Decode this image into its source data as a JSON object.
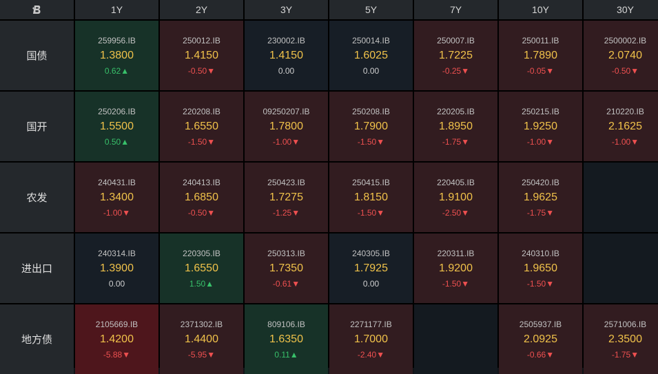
{
  "columns": [
    "1Y",
    "2Y",
    "3Y",
    "5Y",
    "7Y",
    "10Y",
    "30Y"
  ],
  "rows": [
    {
      "label": "国债",
      "cells": [
        {
          "code": "259956.IB",
          "yield": "1.3800",
          "change": "0.62▲",
          "dir": "up",
          "tone": "green"
        },
        {
          "code": "250012.IB",
          "yield": "1.4150",
          "change": "-0.50▼",
          "dir": "down",
          "tone": "red"
        },
        {
          "code": "230002.IB",
          "yield": "1.4150",
          "change": "0.00",
          "dir": "flat",
          "tone": "neutral"
        },
        {
          "code": "250014.IB",
          "yield": "1.6025",
          "change": "0.00",
          "dir": "flat",
          "tone": "neutral"
        },
        {
          "code": "250007.IB",
          "yield": "1.7225",
          "change": "-0.25▼",
          "dir": "down",
          "tone": "red"
        },
        {
          "code": "250011.IB",
          "yield": "1.7890",
          "change": "-0.05▼",
          "dir": "down",
          "tone": "red"
        },
        {
          "code": "2500002.IB",
          "yield": "2.0740",
          "change": "-0.50▼",
          "dir": "down",
          "tone": "red"
        }
      ]
    },
    {
      "label": "国开",
      "cells": [
        {
          "code": "250206.IB",
          "yield": "1.5500",
          "change": "0.50▲",
          "dir": "up",
          "tone": "green"
        },
        {
          "code": "220208.IB",
          "yield": "1.6550",
          "change": "-1.50▼",
          "dir": "down",
          "tone": "red"
        },
        {
          "code": "09250207.IB",
          "yield": "1.7800",
          "change": "-1.00▼",
          "dir": "down",
          "tone": "red"
        },
        {
          "code": "250208.IB",
          "yield": "1.7900",
          "change": "-1.50▼",
          "dir": "down",
          "tone": "red"
        },
        {
          "code": "220205.IB",
          "yield": "1.8950",
          "change": "-1.75▼",
          "dir": "down",
          "tone": "red"
        },
        {
          "code": "250215.IB",
          "yield": "1.9250",
          "change": "-1.00▼",
          "dir": "down",
          "tone": "red"
        },
        {
          "code": "210220.IB",
          "yield": "2.1625",
          "change": "-1.00▼",
          "dir": "down",
          "tone": "red"
        }
      ]
    },
    {
      "label": "农发",
      "cells": [
        {
          "code": "240431.IB",
          "yield": "1.3400",
          "change": "-1.00▼",
          "dir": "down",
          "tone": "red"
        },
        {
          "code": "240413.IB",
          "yield": "1.6850",
          "change": "-0.50▼",
          "dir": "down",
          "tone": "red"
        },
        {
          "code": "250423.IB",
          "yield": "1.7275",
          "change": "-1.25▼",
          "dir": "down",
          "tone": "red"
        },
        {
          "code": "250415.IB",
          "yield": "1.8150",
          "change": "-1.50▼",
          "dir": "down",
          "tone": "red"
        },
        {
          "code": "220405.IB",
          "yield": "1.9100",
          "change": "-2.50▼",
          "dir": "down",
          "tone": "red"
        },
        {
          "code": "250420.IB",
          "yield": "1.9625",
          "change": "-1.75▼",
          "dir": "down",
          "tone": "red"
        },
        null
      ]
    },
    {
      "label": "进出口",
      "cells": [
        {
          "code": "240314.IB",
          "yield": "1.3900",
          "change": "0.00",
          "dir": "flat",
          "tone": "neutral"
        },
        {
          "code": "220305.IB",
          "yield": "1.6550",
          "change": "1.50▲",
          "dir": "up",
          "tone": "green"
        },
        {
          "code": "250313.IB",
          "yield": "1.7350",
          "change": "-0.61▼",
          "dir": "down",
          "tone": "red"
        },
        {
          "code": "240305.IB",
          "yield": "1.7925",
          "change": "0.00",
          "dir": "flat",
          "tone": "neutral"
        },
        {
          "code": "220311.IB",
          "yield": "1.9200",
          "change": "-1.50▼",
          "dir": "down",
          "tone": "red"
        },
        {
          "code": "240310.IB",
          "yield": "1.9650",
          "change": "-1.50▼",
          "dir": "down",
          "tone": "red"
        },
        null
      ]
    },
    {
      "label": "地方债",
      "cells": [
        {
          "code": "2105669.IB",
          "yield": "1.4200",
          "change": "-5.88▼",
          "dir": "down",
          "tone": "red-strong"
        },
        {
          "code": "2371302.IB",
          "yield": "1.4400",
          "change": "-5.95▼",
          "dir": "down",
          "tone": "red"
        },
        {
          "code": "809106.IB",
          "yield": "1.6350",
          "change": "0.11▲",
          "dir": "up",
          "tone": "green"
        },
        {
          "code": "2271177.IB",
          "yield": "1.7000",
          "change": "-2.40▼",
          "dir": "down",
          "tone": "red"
        },
        null,
        {
          "code": "2505937.IB",
          "yield": "2.0925",
          "change": "-0.66▼",
          "dir": "down",
          "tone": "red"
        },
        {
          "code": "2571006.IB",
          "yield": "2.3500",
          "change": "-1.75▼",
          "dir": "down",
          "tone": "red"
        }
      ]
    }
  ],
  "colors": {
    "up": "#38c06a",
    "down": "#ee5050",
    "yield": "#f0c24a",
    "green_bg": "#173228",
    "red_bg": "#321c20",
    "red_strong_bg": "#4e161c",
    "neutral_bg": "#171e26"
  },
  "icons": {
    "corner_logo": "logo-icon"
  }
}
